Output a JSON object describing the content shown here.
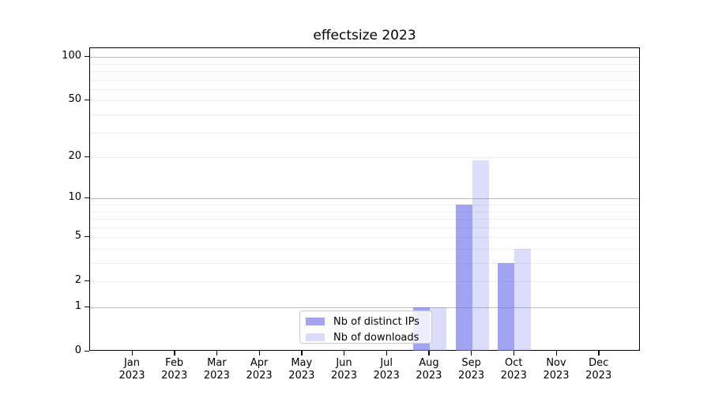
{
  "chart_data": {
    "type": "bar",
    "title": "effectsize 2023",
    "categories": [
      "Jan",
      "Feb",
      "Mar",
      "Apr",
      "May",
      "Jun",
      "Jul",
      "Aug",
      "Sep",
      "Oct",
      "Nov",
      "Dec"
    ],
    "year": "2023",
    "series": [
      {
        "name": "Nb of distinct IPs",
        "key": "ips",
        "fill": "rgba(114,114,238,0.65)",
        "legend_color": "#a4a4f3",
        "values": [
          0,
          0,
          0,
          0,
          0,
          0,
          0,
          1,
          9,
          3,
          0,
          0
        ]
      },
      {
        "name": "Nb of downloads",
        "key": "downloads",
        "fill": "rgba(114,114,238,0.25)",
        "legend_color": "#dbdbf9",
        "values": [
          0,
          0,
          0,
          0,
          0,
          0,
          0,
          1,
          19,
          4,
          0,
          0
        ]
      }
    ],
    "yticks": [
      0,
      1,
      2,
      5,
      10,
      20,
      50,
      100
    ],
    "major_gridlines": [
      1,
      10,
      100
    ],
    "minor_gridlines": [
      3,
      4,
      6,
      7,
      8,
      9,
      30,
      40,
      60,
      70,
      80,
      90
    ],
    "scale": "log1p",
    "ylim": [
      0,
      115
    ],
    "grid": true,
    "legend_position": "bottom-center",
    "background_color": "#ffffff",
    "spine_color": "#000000"
  }
}
